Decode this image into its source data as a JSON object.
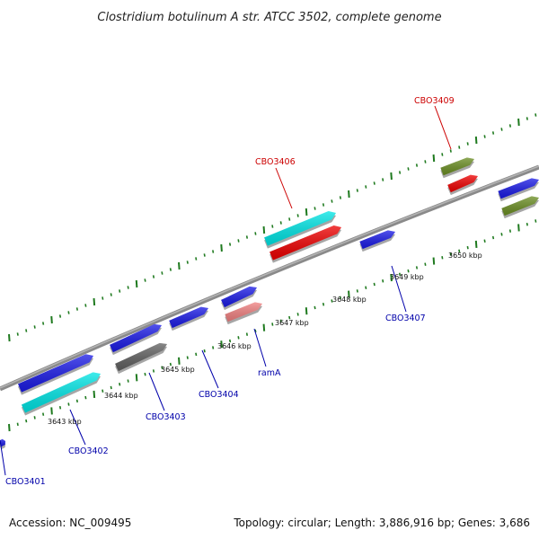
{
  "title": "Clostridium botulinum A str. ATCC 3502, complete genome",
  "footer": {
    "accession": "Accession: NC_009495",
    "summary": "Topology: circular; Length: 3,886,916 bp; Genes: 3,686"
  },
  "colors": {
    "backbone": "#8a8a8a",
    "tick": "#1f7a1f",
    "label_forward": "#cc0000",
    "label_reverse": "#0000aa"
  },
  "kbp_labels": [
    "3643 kbp",
    "3644 kbp",
    "3645 kbp",
    "3646 kbp",
    "3647 kbp",
    "3648 kbp",
    "3649 kbp",
    "3650 kbp"
  ],
  "gene_labels": [
    {
      "name": "CBO3401",
      "color": "#0000aa"
    },
    {
      "name": "CBO3402",
      "color": "#0000aa"
    },
    {
      "name": "CBO3403",
      "color": "#0000aa"
    },
    {
      "name": "CBO3404",
      "color": "#0000aa"
    },
    {
      "name": "ramA",
      "color": "#0000aa"
    },
    {
      "name": "CBO3406",
      "color": "#cc0000"
    },
    {
      "name": "CBO3407",
      "color": "#0000aa"
    },
    {
      "name": "CBO3409",
      "color": "#cc0000"
    }
  ],
  "features": [
    {
      "color": "#1a1ae6",
      "dir": "forward"
    },
    {
      "color": "#1a1ae6",
      "dir": "forward"
    },
    {
      "color": "#1a1ae6",
      "dir": "forward"
    },
    {
      "color": "#1a1ae6",
      "dir": "forward"
    },
    {
      "color": "#1a1ae6",
      "dir": "forward"
    },
    {
      "color": "#1a1ae6",
      "dir": "forward"
    },
    {
      "color": "#1a1ae6",
      "dir": "forward"
    },
    {
      "color": "#00e5e5",
      "dir": "forward"
    },
    {
      "color": "#606060",
      "dir": "forward"
    },
    {
      "color": "#f08080",
      "dir": "forward"
    },
    {
      "color": "#00e5e5",
      "dir": "forward"
    },
    {
      "color": "#ee0000",
      "dir": "forward"
    },
    {
      "color": "#6b8e23",
      "dir": "forward"
    },
    {
      "color": "#ee0000",
      "dir": "forward"
    },
    {
      "color": "#6b8e23",
      "dir": "forward"
    }
  ]
}
